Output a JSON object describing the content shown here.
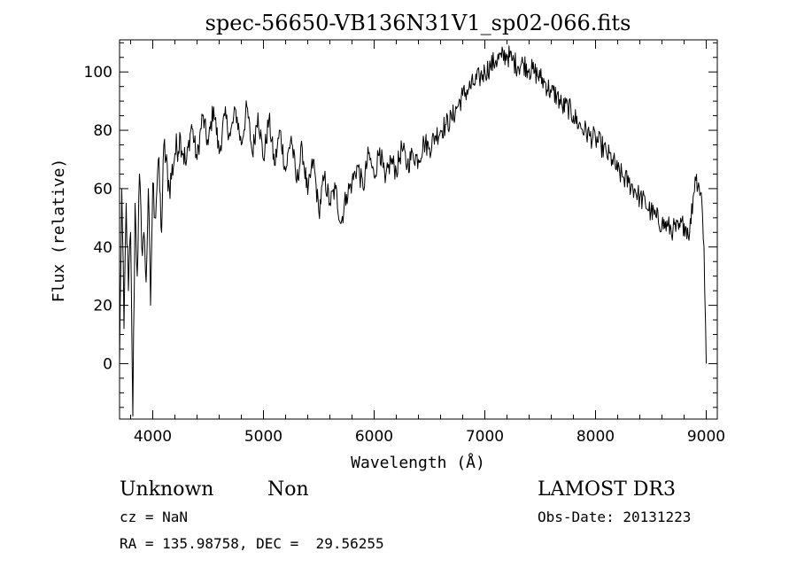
{
  "chart_data": {
    "type": "line",
    "title": "spec-56650-VB136N31V1_sp02-066.fits",
    "xlabel": "Wavelength (Å)",
    "ylabel": "Flux (relative)",
    "xlim": [
      3700,
      9100
    ],
    "ylim": [
      -19,
      111
    ],
    "x_ticks": [
      4000,
      5000,
      6000,
      7000,
      8000,
      9000
    ],
    "x_tick_labels": [
      "4000",
      "5000",
      "6000",
      "7000",
      "8000",
      "9000"
    ],
    "y_ticks": [
      0,
      20,
      40,
      60,
      80,
      100
    ],
    "y_tick_labels": [
      "0",
      "20",
      "40",
      "60",
      "80",
      "100"
    ],
    "grid": false,
    "series": [
      {
        "x": [
          3700,
          3720,
          3740,
          3760,
          3780,
          3800,
          3820,
          3840,
          3860,
          3880,
          3900,
          3920,
          3940,
          3960,
          3980,
          4000,
          4020,
          4050,
          4080,
          4100,
          4150,
          4200,
          4250,
          4300,
          4350,
          4400,
          4450,
          4500,
          4550,
          4600,
          4650,
          4700,
          4750,
          4800,
          4850,
          4900,
          4950,
          5000,
          5050,
          5100,
          5150,
          5200,
          5250,
          5300,
          5350,
          5400,
          5450,
          5500,
          5550,
          5600,
          5650,
          5700,
          5750,
          5800,
          5850,
          5900,
          5950,
          6000,
          6050,
          6100,
          6150,
          6200,
          6250,
          6300,
          6350,
          6400,
          6450,
          6500,
          6550,
          6600,
          6650,
          6700,
          6750,
          6800,
          6850,
          6900,
          6950,
          7000,
          7050,
          7100,
          7150,
          7200,
          7250,
          7300,
          7350,
          7400,
          7450,
          7500,
          7550,
          7600,
          7650,
          7700,
          7750,
          7800,
          7850,
          7900,
          7950,
          8000,
          8050,
          8100,
          8150,
          8200,
          8250,
          8300,
          8350,
          8400,
          8450,
          8500,
          8550,
          8600,
          8650,
          8700,
          8750,
          8800,
          8850,
          8900,
          8930,
          8960,
          8980,
          9000
        ],
        "y": [
          0,
          60,
          12,
          55,
          25,
          45,
          -18,
          55,
          30,
          65,
          40,
          45,
          28,
          60,
          20,
          62,
          50,
          70,
          45,
          75,
          60,
          72,
          78,
          68,
          82,
          70,
          85,
          75,
          88,
          72,
          85,
          78,
          87,
          75,
          88,
          72,
          86,
          70,
          84,
          68,
          80,
          66,
          78,
          62,
          74,
          58,
          70,
          52,
          64,
          55,
          60,
          48,
          58,
          62,
          68,
          60,
          72,
          64,
          74,
          62,
          70,
          66,
          74,
          68,
          72,
          70,
          76,
          74,
          78,
          80,
          82,
          84,
          88,
          92,
          94,
          96,
          98,
          100,
          102,
          104,
          105,
          106,
          104,
          102,
          103,
          101,
          100,
          98,
          96,
          93,
          92,
          88,
          88,
          85,
          82,
          80,
          78,
          77,
          75,
          72,
          70,
          66,
          64,
          62,
          60,
          57,
          55,
          52,
          50,
          48,
          47,
          46,
          46,
          48,
          45,
          64,
          62,
          56,
          40,
          0
        ]
      }
    ],
    "annotations": {
      "obj_class": "Unknown",
      "obj_subclass": "Non",
      "survey": "LAMOST DR3",
      "cz_text": "cz = NaN",
      "obs_date_text": "Obs-Date: 20131223",
      "coords_text": "RA = 135.98758, DEC =  29.56255"
    }
  }
}
